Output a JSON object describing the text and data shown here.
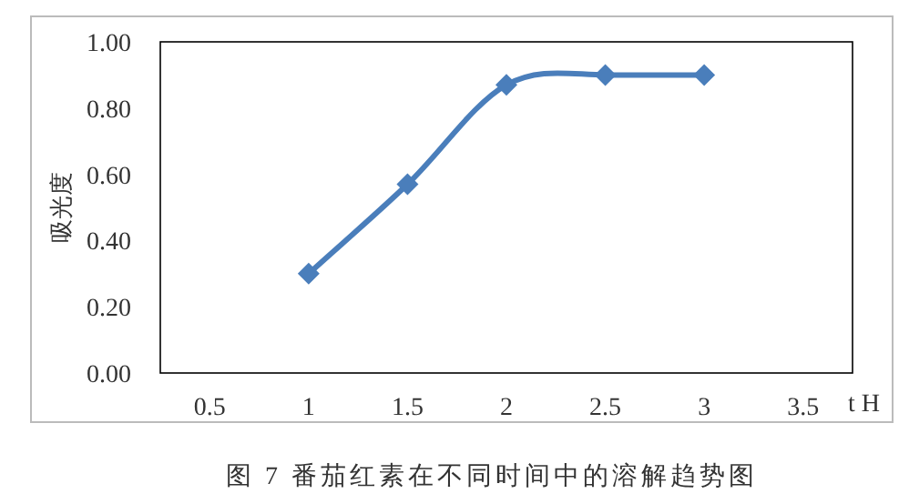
{
  "chart_data": {
    "type": "line",
    "title": "图 7 番茄红素在不同时间中的溶解趋势图",
    "xlabel": "t H",
    "ylabel": "吸光度",
    "categories": [
      "0.5",
      "1",
      "1.5",
      "2",
      "2.5",
      "3",
      "3.5"
    ],
    "series": [
      {
        "color": "#4a7ebb",
        "values": [
          null,
          0.3,
          0.57,
          0.87,
          0.9,
          0.9,
          null
        ]
      }
    ],
    "ylim": [
      0,
      1
    ],
    "yticks": [
      {
        "value": 0,
        "label": "0.00"
      },
      {
        "value": 0.2,
        "label": "0.20"
      },
      {
        "value": 0.4,
        "label": "0.40"
      },
      {
        "value": 0.6,
        "label": "0.60"
      },
      {
        "value": 0.8,
        "label": "0.80"
      },
      {
        "value": 1,
        "label": "1.00"
      }
    ],
    "marker": "diamond",
    "line_style": "solid",
    "grid": false
  }
}
